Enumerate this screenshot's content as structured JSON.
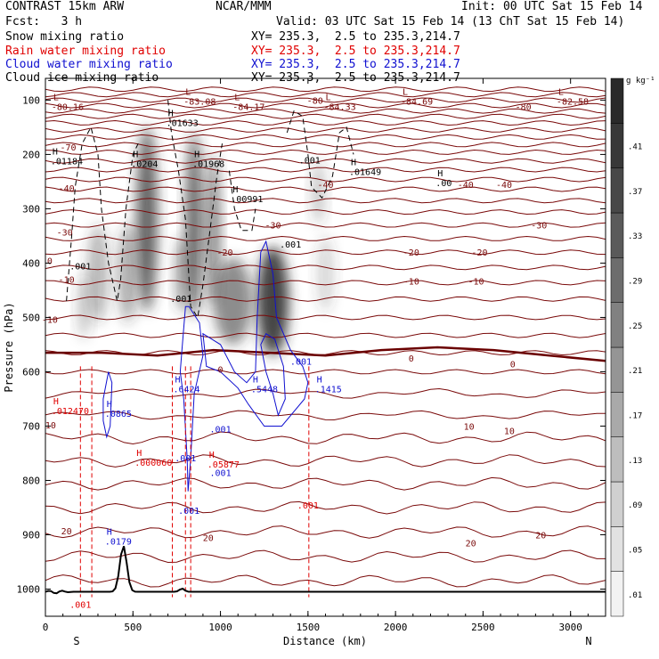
{
  "header": {
    "model": "CONTRAST 15km ARW",
    "center": "NCAR/MMM",
    "init": "Init: 00 UTC Sat 15 Feb 14",
    "fcst": "Fcst:   3 h",
    "valid": "Valid: 03 UTC Sat 15 Feb 14 (13 ChT Sat 15 Feb 14)"
  },
  "fields": [
    {
      "name": "Snow mixing ratio",
      "xy": "XY= 235.3,  2.5 to 235.3,214.7",
      "color": "#000000"
    },
    {
      "name": "Rain water mixing ratio",
      "xy": "XY= 235.3,  2.5 to 235.3,214.7",
      "color": "#e00000"
    },
    {
      "name": "Cloud water mixing ratio",
      "xy": "XY= 235.3,  2.5 to 235.3,214.7",
      "color": "#1010d0"
    },
    {
      "name": "Cloud ice mixing ratio",
      "xy": "XY= 235.3,  2.5 to 235.3,214.7",
      "color": "#000000"
    }
  ],
  "chart_data": {
    "type": "cross-section",
    "xlabel": "Distance (km)",
    "ylabel": "Pressure (hPa)",
    "xlim": [
      0,
      3200
    ],
    "ylim": [
      1050,
      60
    ],
    "x_ticks": [
      0,
      500,
      1000,
      1500,
      2000,
      2500,
      3000
    ],
    "y_ticks": [
      100,
      200,
      300,
      400,
      500,
      600,
      700,
      800,
      900,
      1000
    ],
    "bottom_labels": {
      "left": "S",
      "right": "N"
    },
    "colorbar": {
      "units": "g kg⁻¹",
      "levels": [
        ".01",
        ".05",
        ".09",
        ".13",
        ".17",
        ".21",
        ".25",
        ".29",
        ".33",
        ".37",
        ".41"
      ],
      "colors": [
        "#f2f2f2",
        "#e2e2e2",
        "#d0d0d0",
        "#bdbdbd",
        "#a9a9a9",
        "#959595",
        "#818181",
        "#6d6d6d",
        "#5a5a5a",
        "#484848",
        "#383838",
        "#2a2a2a"
      ]
    },
    "temperature_labels": [
      {
        "x": 25,
        "p": 395,
        "text": "0"
      },
      {
        "x": 1000,
        "p": 595,
        "text": "0"
      },
      {
        "x": 2090,
        "p": 575,
        "text": "0"
      },
      {
        "x": 2670,
        "p": 585,
        "text": "0"
      },
      {
        "x": 25,
        "p": 503,
        "text": "-10"
      },
      {
        "x": 120,
        "p": 430,
        "text": "-10"
      },
      {
        "x": 2090,
        "p": 433,
        "text": "-10"
      },
      {
        "x": 2460,
        "p": 433,
        "text": "-10"
      },
      {
        "x": 1025,
        "p": 380,
        "text": "-20"
      },
      {
        "x": 2090,
        "p": 380,
        "text": "-20"
      },
      {
        "x": 2480,
        "p": 380,
        "text": "-20"
      },
      {
        "x": 110,
        "p": 343,
        "text": "-30"
      },
      {
        "x": 1300,
        "p": 330,
        "text": "-30"
      },
      {
        "x": 2820,
        "p": 330,
        "text": "-30"
      },
      {
        "x": 120,
        "p": 262,
        "text": "-40"
      },
      {
        "x": 1600,
        "p": 255,
        "text": "-40"
      },
      {
        "x": 2400,
        "p": 255,
        "text": "-40"
      },
      {
        "x": 2620,
        "p": 255,
        "text": "-40"
      },
      {
        "x": 130,
        "p": 186,
        "text": "-70"
      },
      {
        "x": 1540,
        "p": 100,
        "text": "-80"
      },
      {
        "x": 2730,
        "p": 112,
        "text": "-80"
      },
      {
        "x": 30,
        "p": 698,
        "text": "10"
      },
      {
        "x": 2420,
        "p": 700,
        "text": "10"
      },
      {
        "x": 2650,
        "p": 708,
        "text": "10"
      },
      {
        "x": 120,
        "p": 893,
        "text": "20"
      },
      {
        "x": 930,
        "p": 905,
        "text": "20"
      },
      {
        "x": 2430,
        "p": 915,
        "text": "20"
      },
      {
        "x": 2830,
        "p": 900,
        "text": "20"
      }
    ],
    "extrema": [
      {
        "x": 45,
        "p": 100,
        "h": "L",
        "v": "-80.16",
        "color": "#7a0a0a"
      },
      {
        "x": 800,
        "p": 90,
        "h": "L",
        "v": "-83.08",
        "color": "#7a0a0a"
      },
      {
        "x": 1080,
        "p": 100,
        "h": "L",
        "v": "-84.17",
        "color": "#7a0a0a"
      },
      {
        "x": 1600,
        "p": 100,
        "h": "L",
        "v": "-84.33",
        "color": "#7a0a0a"
      },
      {
        "x": 2040,
        "p": 90,
        "h": "L",
        "v": "-84.69",
        "color": "#7a0a0a"
      },
      {
        "x": 2930,
        "p": 90,
        "h": "L",
        "v": "-82.58",
        "color": "#7a0a0a"
      },
      {
        "x": 700,
        "p": 130,
        "h": "H",
        "v": ".01633",
        "color": "#000000"
      },
      {
        "x": 40,
        "p": 200,
        "h": "H",
        "v": ".01184",
        "color": "#000000"
      },
      {
        "x": 500,
        "p": 205,
        "h": "H",
        "v": ".0204",
        "color": "#000000"
      },
      {
        "x": 850,
        "p": 205,
        "h": "H",
        "v": ".01968",
        "color": "#000000"
      },
      {
        "x": 1070,
        "p": 270,
        "h": "H",
        "v": ".00991",
        "color": "#000000"
      },
      {
        "x": 1745,
        "p": 220,
        "h": "H",
        "v": ".01649",
        "color": "#000000"
      },
      {
        "x": 2240,
        "p": 240,
        "h": "H",
        "v": ".00",
        "color": "#000000"
      },
      {
        "x": 45,
        "p": 660,
        "h": "H",
        "v": ".012470",
        "color": "#e00000"
      },
      {
        "x": 520,
        "p": 755,
        "h": "H",
        "v": ".000060",
        "color": "#e00000"
      },
      {
        "x": 935,
        "p": 758,
        "h": "H",
        "v": ".05877",
        "color": "#e00000"
      },
      {
        "x": 350,
        "p": 665,
        "h": "H",
        "v": ".0865",
        "color": "#1010d0"
      },
      {
        "x": 740,
        "p": 620,
        "h": "H",
        "v": ".6424",
        "color": "#1010d0"
      },
      {
        "x": 1185,
        "p": 620,
        "h": "H",
        "v": ".5448",
        "color": "#1010d0"
      },
      {
        "x": 1550,
        "p": 620,
        "h": "H",
        "v": ".1415",
        "color": "#1010d0"
      },
      {
        "x": 350,
        "p": 900,
        "h": "H",
        "v": ".0179",
        "color": "#1010d0"
      }
    ],
    "value_labels": [
      {
        "x": 200,
        "p": 405,
        "text": ".001",
        "color": "#000000"
      },
      {
        "x": 775,
        "p": 465,
        "text": ".001",
        "color": "#000000"
      },
      {
        "x": 1510,
        "p": 210,
        "text": ".001",
        "color": "#000000"
      },
      {
        "x": 1400,
        "p": 365,
        "text": ".001",
        "color": "#000000"
      },
      {
        "x": 1460,
        "p": 580,
        "text": ".001",
        "color": "#1010d0"
      },
      {
        "x": 1000,
        "p": 705,
        "text": ".001",
        "color": "#1010d0"
      },
      {
        "x": 1000,
        "p": 785,
        "text": ".001",
        "color": "#1010d0"
      },
      {
        "x": 800,
        "p": 758,
        "text": ".001",
        "color": "#1010d0"
      },
      {
        "x": 820,
        "p": 855,
        "text": ".001",
        "color": "#1010d0"
      },
      {
        "x": 1500,
        "p": 845,
        "text": ".001",
        "color": "#e00000"
      },
      {
        "x": 200,
        "p": 1028,
        "text": ".001",
        "color": "#e00000"
      }
    ],
    "snow_blobs": [
      {
        "x": 580,
        "p": 320,
        "rx": 60,
        "rp": 170,
        "a": 0.75
      },
      {
        "x": 850,
        "p": 330,
        "rx": 50,
        "rp": 170,
        "a": 0.7
      },
      {
        "x": 960,
        "p": 340,
        "rx": 40,
        "rp": 140,
        "a": 0.6
      },
      {
        "x": 1300,
        "p": 470,
        "rx": 90,
        "rp": 100,
        "a": 0.9
      },
      {
        "x": 1070,
        "p": 470,
        "rx": 110,
        "rp": 80,
        "a": 0.55
      },
      {
        "x": 300,
        "p": 420,
        "rx": 60,
        "rp": 90,
        "a": 0.35
      },
      {
        "x": 470,
        "p": 420,
        "rx": 55,
        "rp": 90,
        "a": 0.4
      },
      {
        "x": 780,
        "p": 420,
        "rx": 40,
        "rp": 70,
        "a": 0.45
      },
      {
        "x": 1560,
        "p": 270,
        "rx": 40,
        "rp": 60,
        "a": 0.25
      },
      {
        "x": 1600,
        "p": 420,
        "rx": 50,
        "rp": 70,
        "a": 0.2
      },
      {
        "x": 220,
        "p": 480,
        "rx": 40,
        "rp": 60,
        "a": 0.25
      }
    ],
    "temperature_isotherms_p": [
      80,
      90,
      100,
      110,
      120,
      130,
      142,
      155,
      168,
      182,
      196,
      212,
      228,
      246,
      264,
      285,
      306,
      330,
      355,
      380,
      408,
      436,
      466,
      500,
      533,
      565,
      600,
      640,
      680,
      722,
      764,
      806,
      850,
      895,
      940,
      985
    ],
    "freezing_level_p": [
      565,
      565,
      570,
      560,
      565,
      570,
      560,
      555,
      560,
      570,
      580
    ],
    "terrain_p": 1005,
    "rain_dashes_x": [
      200,
      265,
      725,
      800,
      830,
      1505
    ]
  }
}
